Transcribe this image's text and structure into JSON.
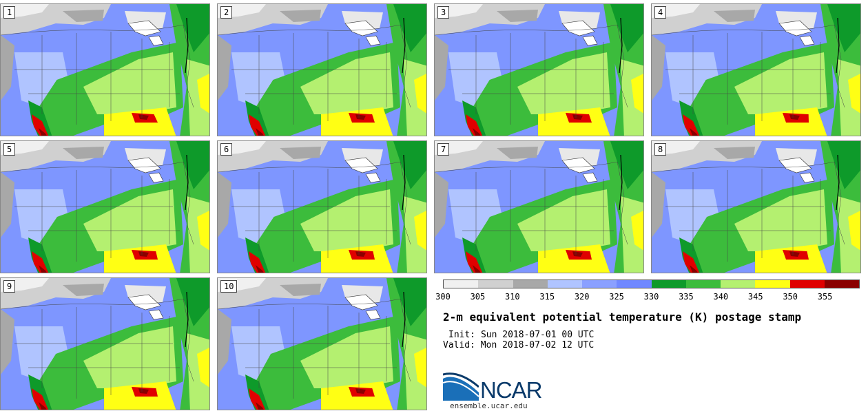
{
  "panels": [
    {
      "label": "1"
    },
    {
      "label": "2"
    },
    {
      "label": "3"
    },
    {
      "label": "4"
    },
    {
      "label": "5"
    },
    {
      "label": "6"
    },
    {
      "label": "7"
    },
    {
      "label": "8"
    },
    {
      "label": "9"
    },
    {
      "label": "10"
    }
  ],
  "colorbar": {
    "colors": [
      "#f0f0f0",
      "#d0d0d0",
      "#a8a8a8",
      "#b0c4ff",
      "#8aa0ff",
      "#7088ff",
      "#0e9a2a",
      "#3cbc3c",
      "#b4f070",
      "#ffff14",
      "#e00000",
      "#8a0000"
    ],
    "ticks": [
      "300",
      "305",
      "310",
      "315",
      "320",
      "325",
      "330",
      "335",
      "340",
      "345",
      "350",
      "355"
    ]
  },
  "title": "2-m equivalent potential temperature (K) postage stamp",
  "init_label": "Init:",
  "init_value": "Sun 2018-07-01 00 UTC",
  "valid_label": "Valid:",
  "valid_value": "Mon 2018-07-02 12 UTC",
  "logo": {
    "text": "NCAR"
  },
  "url": "ensemble.ucar.edu"
}
